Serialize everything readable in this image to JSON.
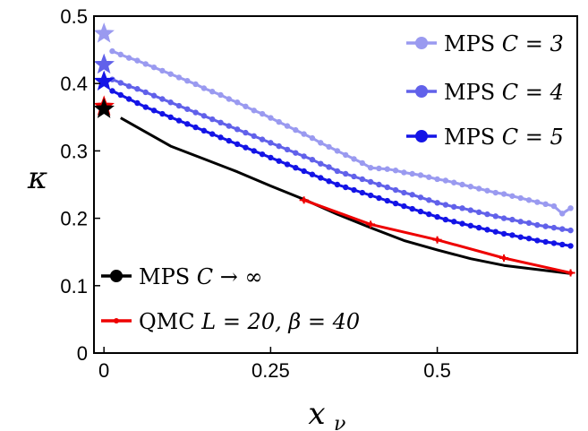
{
  "chart_data": {
    "type": "line",
    "xlabel": "x",
    "xlabel_sub": "ν",
    "ylabel": "κ",
    "xlim": [
      -0.015,
      0.71
    ],
    "ylim": [
      0,
      0.5
    ],
    "xticks": [
      0,
      0.25,
      0.5
    ],
    "xtick_labels": [
      "0",
      "0.25",
      "0.5"
    ],
    "yticks": [
      0,
      0.1,
      0.2,
      0.3,
      0.4,
      0.5
    ],
    "ytick_labels": [
      "0",
      "0.1",
      "0.2",
      "0.3",
      "0.4",
      "0.5"
    ],
    "grid": false,
    "series": [
      {
        "name_prefix": "MPS ",
        "name_math": "C = 3",
        "color": "#9a9af0",
        "marker": "circle",
        "x": [
          0.0125,
          0.025,
          0.0375,
          0.05,
          0.0625,
          0.075,
          0.0875,
          0.1,
          0.1125,
          0.125,
          0.1375,
          0.15,
          0.1625,
          0.175,
          0.1875,
          0.2,
          0.2125,
          0.225,
          0.2375,
          0.25,
          0.2625,
          0.275,
          0.2875,
          0.3,
          0.3125,
          0.325,
          0.3375,
          0.35,
          0.3625,
          0.375,
          0.3875,
          0.4,
          0.4125,
          0.425,
          0.4375,
          0.45,
          0.4625,
          0.475,
          0.4875,
          0.5,
          0.5125,
          0.525,
          0.5375,
          0.55,
          0.5625,
          0.575,
          0.5875,
          0.6,
          0.6125,
          0.625,
          0.6375,
          0.65,
          0.6625,
          0.675,
          0.6875,
          0.7
        ],
        "y": [
          0.448,
          0.443,
          0.438,
          0.434,
          0.429,
          0.424,
          0.419,
          0.414,
          0.409,
          0.404,
          0.399,
          0.393,
          0.388,
          0.383,
          0.377,
          0.372,
          0.366,
          0.36,
          0.355,
          0.349,
          0.343,
          0.337,
          0.331,
          0.325,
          0.319,
          0.312,
          0.306,
          0.3,
          0.294,
          0.288,
          0.282,
          0.275,
          0.274,
          0.273,
          0.271,
          0.268,
          0.266,
          0.264,
          0.261,
          0.258,
          0.256,
          0.253,
          0.25,
          0.247,
          0.244,
          0.241,
          0.238,
          0.236,
          0.233,
          0.23,
          0.227,
          0.224,
          0.221,
          0.218,
          0.207,
          0.215
        ]
      },
      {
        "name_prefix": "MPS ",
        "name_math": "C = 4",
        "color": "#6161ea",
        "marker": "circle",
        "x": [
          0.0125,
          0.025,
          0.0375,
          0.05,
          0.0625,
          0.075,
          0.0875,
          0.1,
          0.1125,
          0.125,
          0.1375,
          0.15,
          0.1625,
          0.175,
          0.1875,
          0.2,
          0.2125,
          0.225,
          0.2375,
          0.25,
          0.2625,
          0.275,
          0.2875,
          0.3,
          0.3125,
          0.325,
          0.3375,
          0.35,
          0.3625,
          0.375,
          0.3875,
          0.4,
          0.4125,
          0.425,
          0.4375,
          0.45,
          0.4625,
          0.475,
          0.4875,
          0.5,
          0.5125,
          0.525,
          0.5375,
          0.55,
          0.5625,
          0.575,
          0.5875,
          0.6,
          0.6125,
          0.625,
          0.6375,
          0.65,
          0.6625,
          0.675,
          0.6875,
          0.7
        ],
        "y": [
          0.406,
          0.401,
          0.396,
          0.392,
          0.387,
          0.382,
          0.377,
          0.372,
          0.367,
          0.362,
          0.357,
          0.352,
          0.347,
          0.342,
          0.337,
          0.332,
          0.327,
          0.322,
          0.317,
          0.312,
          0.307,
          0.302,
          0.297,
          0.292,
          0.287,
          0.281,
          0.276,
          0.27,
          0.266,
          0.262,
          0.258,
          0.254,
          0.25,
          0.246,
          0.242,
          0.238,
          0.235,
          0.231,
          0.227,
          0.223,
          0.22,
          0.217,
          0.215,
          0.212,
          0.209,
          0.206,
          0.203,
          0.2,
          0.198,
          0.195,
          0.193,
          0.19,
          0.188,
          0.186,
          0.184,
          0.182
        ]
      },
      {
        "name_prefix": "MPS ",
        "name_math": "C = 5",
        "color": "#1414e6",
        "marker": "circle",
        "x": [
          0.0125,
          0.025,
          0.0375,
          0.05,
          0.0625,
          0.075,
          0.0875,
          0.1,
          0.1125,
          0.125,
          0.1375,
          0.15,
          0.1625,
          0.175,
          0.1875,
          0.2,
          0.2125,
          0.225,
          0.2375,
          0.25,
          0.2625,
          0.275,
          0.2875,
          0.3,
          0.3125,
          0.325,
          0.3375,
          0.35,
          0.3625,
          0.375,
          0.3875,
          0.4,
          0.4125,
          0.425,
          0.4375,
          0.45,
          0.4625,
          0.475,
          0.4875,
          0.5,
          0.5125,
          0.525,
          0.5375,
          0.55,
          0.5625,
          0.575,
          0.5875,
          0.6,
          0.6125,
          0.625,
          0.6375,
          0.65,
          0.6625,
          0.675,
          0.6875,
          0.7
        ],
        "y": [
          0.389,
          0.383,
          0.377,
          0.371,
          0.365,
          0.36,
          0.355,
          0.35,
          0.345,
          0.34,
          0.335,
          0.33,
          0.325,
          0.32,
          0.315,
          0.31,
          0.305,
          0.3,
          0.295,
          0.29,
          0.285,
          0.28,
          0.275,
          0.27,
          0.265,
          0.26,
          0.255,
          0.25,
          0.246,
          0.242,
          0.238,
          0.234,
          0.23,
          0.226,
          0.222,
          0.218,
          0.214,
          0.21,
          0.206,
          0.202,
          0.198,
          0.195,
          0.192,
          0.189,
          0.186,
          0.183,
          0.18,
          0.177,
          0.175,
          0.172,
          0.17,
          0.167,
          0.165,
          0.163,
          0.161,
          0.159
        ]
      },
      {
        "name_prefix": "MPS ",
        "name_math": "C → ∞",
        "color": "#000000",
        "marker": "none",
        "x": [
          0.025,
          0.05,
          0.1,
          0.15,
          0.2,
          0.25,
          0.3,
          0.35,
          0.4,
          0.45,
          0.5,
          0.55,
          0.6,
          0.65,
          0.7
        ],
        "y": [
          0.349,
          0.335,
          0.307,
          0.288,
          0.269,
          0.248,
          0.228,
          0.206,
          0.186,
          0.167,
          0.153,
          0.14,
          0.13,
          0.124,
          0.118
        ]
      },
      {
        "name_prefix": "QMC ",
        "name_math": "L = 20,  β = 40",
        "color": "#ee0000",
        "marker": "errorbar",
        "x": [
          0.3,
          0.4,
          0.5,
          0.6,
          0.7
        ],
        "y": [
          0.227,
          0.191,
          0.168,
          0.141,
          0.119
        ]
      }
    ],
    "stars": [
      {
        "x": 0.0,
        "y": 0.474,
        "color": "#9a9af0"
      },
      {
        "x": 0.0,
        "y": 0.428,
        "color": "#6161ea"
      },
      {
        "x": 0.0,
        "y": 0.403,
        "color": "#1414e6"
      },
      {
        "x": 0.0,
        "y": 0.366,
        "color": "#ee0000"
      },
      {
        "x": 0.0,
        "y": 0.362,
        "color": "#000000"
      }
    ],
    "legend": {
      "upper": "top-right",
      "lower": "bottom-left"
    }
  }
}
